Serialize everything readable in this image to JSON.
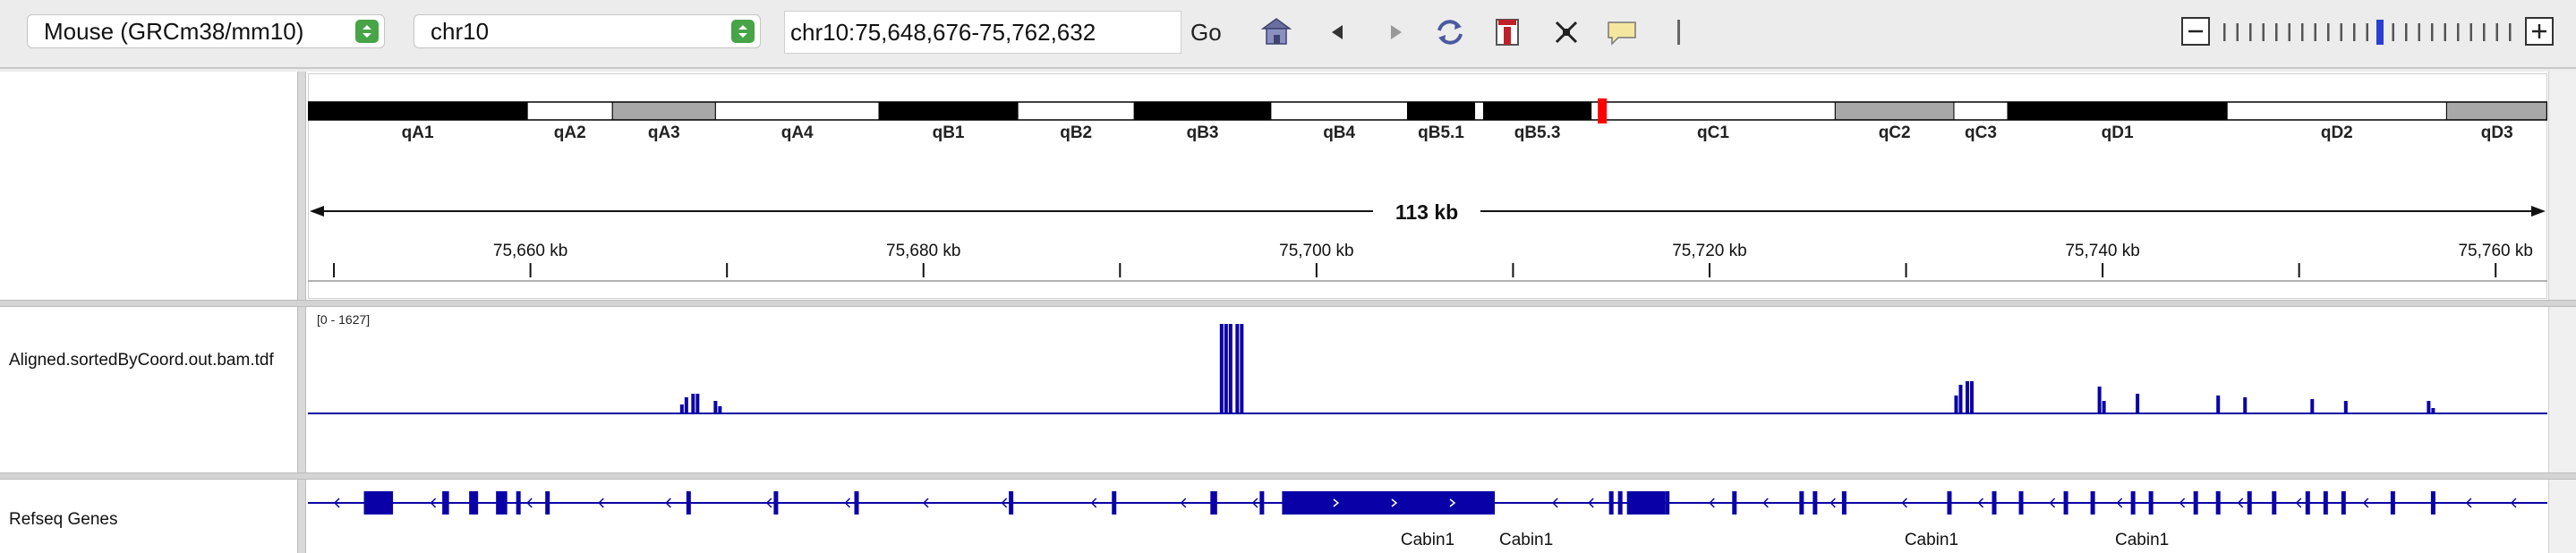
{
  "toolbar": {
    "genome": "Mouse (GRCm38/mm10)",
    "chromosome": "chr10",
    "locus": "chr10:75,648,676-75,762,632",
    "go_label": "Go",
    "icons": [
      "home-icon",
      "back-icon",
      "forward-icon",
      "refresh-icon",
      "roi-icon",
      "resize-icon",
      "popup-text-icon",
      "divider"
    ],
    "zoom": {
      "ticks": 23,
      "current_index": 12
    }
  },
  "ideogram": {
    "bands": [
      {
        "name": "qA1",
        "start": 0,
        "end": 0.098,
        "fill": "#000000"
      },
      {
        "name": "qA2",
        "start": 0.098,
        "end": 0.136,
        "fill": "#ffffff"
      },
      {
        "name": "qA3",
        "start": 0.136,
        "end": 0.182,
        "fill": "#a8a8a8"
      },
      {
        "name": "qA4",
        "start": 0.182,
        "end": 0.255,
        "fill": "#ffffff"
      },
      {
        "name": "qB1",
        "start": 0.255,
        "end": 0.317,
        "fill": "#000000"
      },
      {
        "name": "qB2",
        "start": 0.317,
        "end": 0.369,
        "fill": "#ffffff"
      },
      {
        "name": "qB3",
        "start": 0.369,
        "end": 0.43,
        "fill": "#000000"
      },
      {
        "name": "qB4",
        "start": 0.43,
        "end": 0.491,
        "fill": "#ffffff"
      },
      {
        "name": "qB5.1",
        "start": 0.491,
        "end": 0.521,
        "fill": "#000000"
      },
      {
        "name": "",
        "start": 0.521,
        "end": 0.525,
        "fill": "#ffffff"
      },
      {
        "name": "qB5.3",
        "start": 0.525,
        "end": 0.573,
        "fill": "#000000"
      },
      {
        "name": "qC1",
        "start": 0.573,
        "end": 0.682,
        "fill": "#ffffff"
      },
      {
        "name": "qC2",
        "start": 0.682,
        "end": 0.735,
        "fill": "#a8a8a8"
      },
      {
        "name": "qC3",
        "start": 0.735,
        "end": 0.759,
        "fill": "#ffffff"
      },
      {
        "name": "qD1",
        "start": 0.759,
        "end": 0.857,
        "fill": "#000000"
      },
      {
        "name": "qD2",
        "start": 0.857,
        "end": 0.955,
        "fill": "#ffffff"
      },
      {
        "name": "qD3",
        "start": 0.955,
        "end": 1.0,
        "fill": "#a8a8a8"
      }
    ],
    "current_position": 0.578,
    "marker_color": "#ff0000"
  },
  "ruler": {
    "span_label": "113 kb",
    "start_kb": 75648.676,
    "end_kb": 75762.632,
    "labels": [
      "75,660 kb",
      "75,680 kb",
      "75,700 kb",
      "75,720 kb",
      "75,740 kb",
      "75,760 kb"
    ],
    "label_kb": [
      75660,
      75680,
      75700,
      75720,
      75740,
      75760
    ],
    "minor_kb": [
      75650,
      75670,
      75690,
      75710,
      75730,
      75750
    ]
  },
  "tracks": {
    "bam": {
      "name": "Aligned.sortedByCoord.out.bam.tdf",
      "range_label": "[0 - 1627]",
      "color": "#0a00a8",
      "max": 1627,
      "peaks": [
        {
          "pos": 0.167,
          "h": 0.1
        },
        {
          "pos": 0.169,
          "h": 0.18
        },
        {
          "pos": 0.172,
          "h": 0.22
        },
        {
          "pos": 0.174,
          "h": 0.22
        },
        {
          "pos": 0.182,
          "h": 0.14
        },
        {
          "pos": 0.184,
          "h": 0.08
        },
        {
          "pos": 0.408,
          "h": 1.0
        },
        {
          "pos": 0.41,
          "h": 1.0
        },
        {
          "pos": 0.412,
          "h": 1.0
        },
        {
          "pos": 0.415,
          "h": 1.0
        },
        {
          "pos": 0.417,
          "h": 1.0
        },
        {
          "pos": 0.736,
          "h": 0.2
        },
        {
          "pos": 0.738,
          "h": 0.32
        },
        {
          "pos": 0.741,
          "h": 0.36
        },
        {
          "pos": 0.743,
          "h": 0.36
        },
        {
          "pos": 0.8,
          "h": 0.3
        },
        {
          "pos": 0.802,
          "h": 0.14
        },
        {
          "pos": 0.817,
          "h": 0.22
        },
        {
          "pos": 0.853,
          "h": 0.2
        },
        {
          "pos": 0.865,
          "h": 0.18
        },
        {
          "pos": 0.895,
          "h": 0.16
        },
        {
          "pos": 0.91,
          "h": 0.14
        },
        {
          "pos": 0.947,
          "h": 0.14
        },
        {
          "pos": 0.949,
          "h": 0.06
        }
      ]
    },
    "refseq": {
      "name": "Refseq Genes",
      "color": "#0a00a8",
      "gene_labels": [
        {
          "text": "Cabin1",
          "pos": 0.5
        },
        {
          "text": "Cabin1",
          "pos": 0.544
        },
        {
          "text": "Cabin1",
          "pos": 0.725
        },
        {
          "text": "Cabin1",
          "pos": 0.819
        }
      ],
      "exons": [
        {
          "s": 0.025,
          "e": 0.038
        },
        {
          "s": 0.06,
          "e": 0.063
        },
        {
          "s": 0.072,
          "e": 0.076
        },
        {
          "s": 0.084,
          "e": 0.089
        },
        {
          "s": 0.093,
          "e": 0.095
        },
        {
          "s": 0.106,
          "e": 0.108
        },
        {
          "s": 0.169,
          "e": 0.171
        },
        {
          "s": 0.208,
          "e": 0.21
        },
        {
          "s": 0.244,
          "e": 0.246
        },
        {
          "s": 0.313,
          "e": 0.315
        },
        {
          "s": 0.359,
          "e": 0.361
        },
        {
          "s": 0.403,
          "e": 0.406
        },
        {
          "s": 0.425,
          "e": 0.427
        },
        {
          "s": 0.435,
          "e": 0.53
        },
        {
          "s": 0.581,
          "e": 0.583
        },
        {
          "s": 0.594,
          "e": 0.596
        },
        {
          "s": 0.606,
          "e": 0.608
        },
        {
          "s": 0.585,
          "e": 0.587
        },
        {
          "s": 0.589,
          "e": 0.606
        },
        {
          "s": 0.636,
          "e": 0.638
        },
        {
          "s": 0.666,
          "e": 0.668
        },
        {
          "s": 0.672,
          "e": 0.674
        },
        {
          "s": 0.685,
          "e": 0.687
        },
        {
          "s": 0.732,
          "e": 0.734
        },
        {
          "s": 0.752,
          "e": 0.754
        },
        {
          "s": 0.764,
          "e": 0.766
        },
        {
          "s": 0.784,
          "e": 0.786
        },
        {
          "s": 0.796,
          "e": 0.798
        },
        {
          "s": 0.814,
          "e": 0.816
        },
        {
          "s": 0.822,
          "e": 0.824
        },
        {
          "s": 0.842,
          "e": 0.844
        },
        {
          "s": 0.852,
          "e": 0.854
        },
        {
          "s": 0.866,
          "e": 0.868
        },
        {
          "s": 0.877,
          "e": 0.879
        },
        {
          "s": 0.892,
          "e": 0.894
        },
        {
          "s": 0.9,
          "e": 0.902
        },
        {
          "s": 0.908,
          "e": 0.91
        },
        {
          "s": 0.93,
          "e": 0.932
        },
        {
          "s": 0.948,
          "e": 0.95
        }
      ],
      "strand_arrows": [
        0.012,
        0.055,
        0.098,
        0.13,
        0.16,
        0.205,
        0.24,
        0.275,
        0.31,
        0.35,
        0.39,
        0.422,
        0.45,
        0.484,
        0.508,
        0.556,
        0.572,
        0.626,
        0.65,
        0.68,
        0.712,
        0.746,
        0.778,
        0.808,
        0.836,
        0.862,
        0.888,
        0.918,
        0.964,
        0.984
      ]
    }
  }
}
